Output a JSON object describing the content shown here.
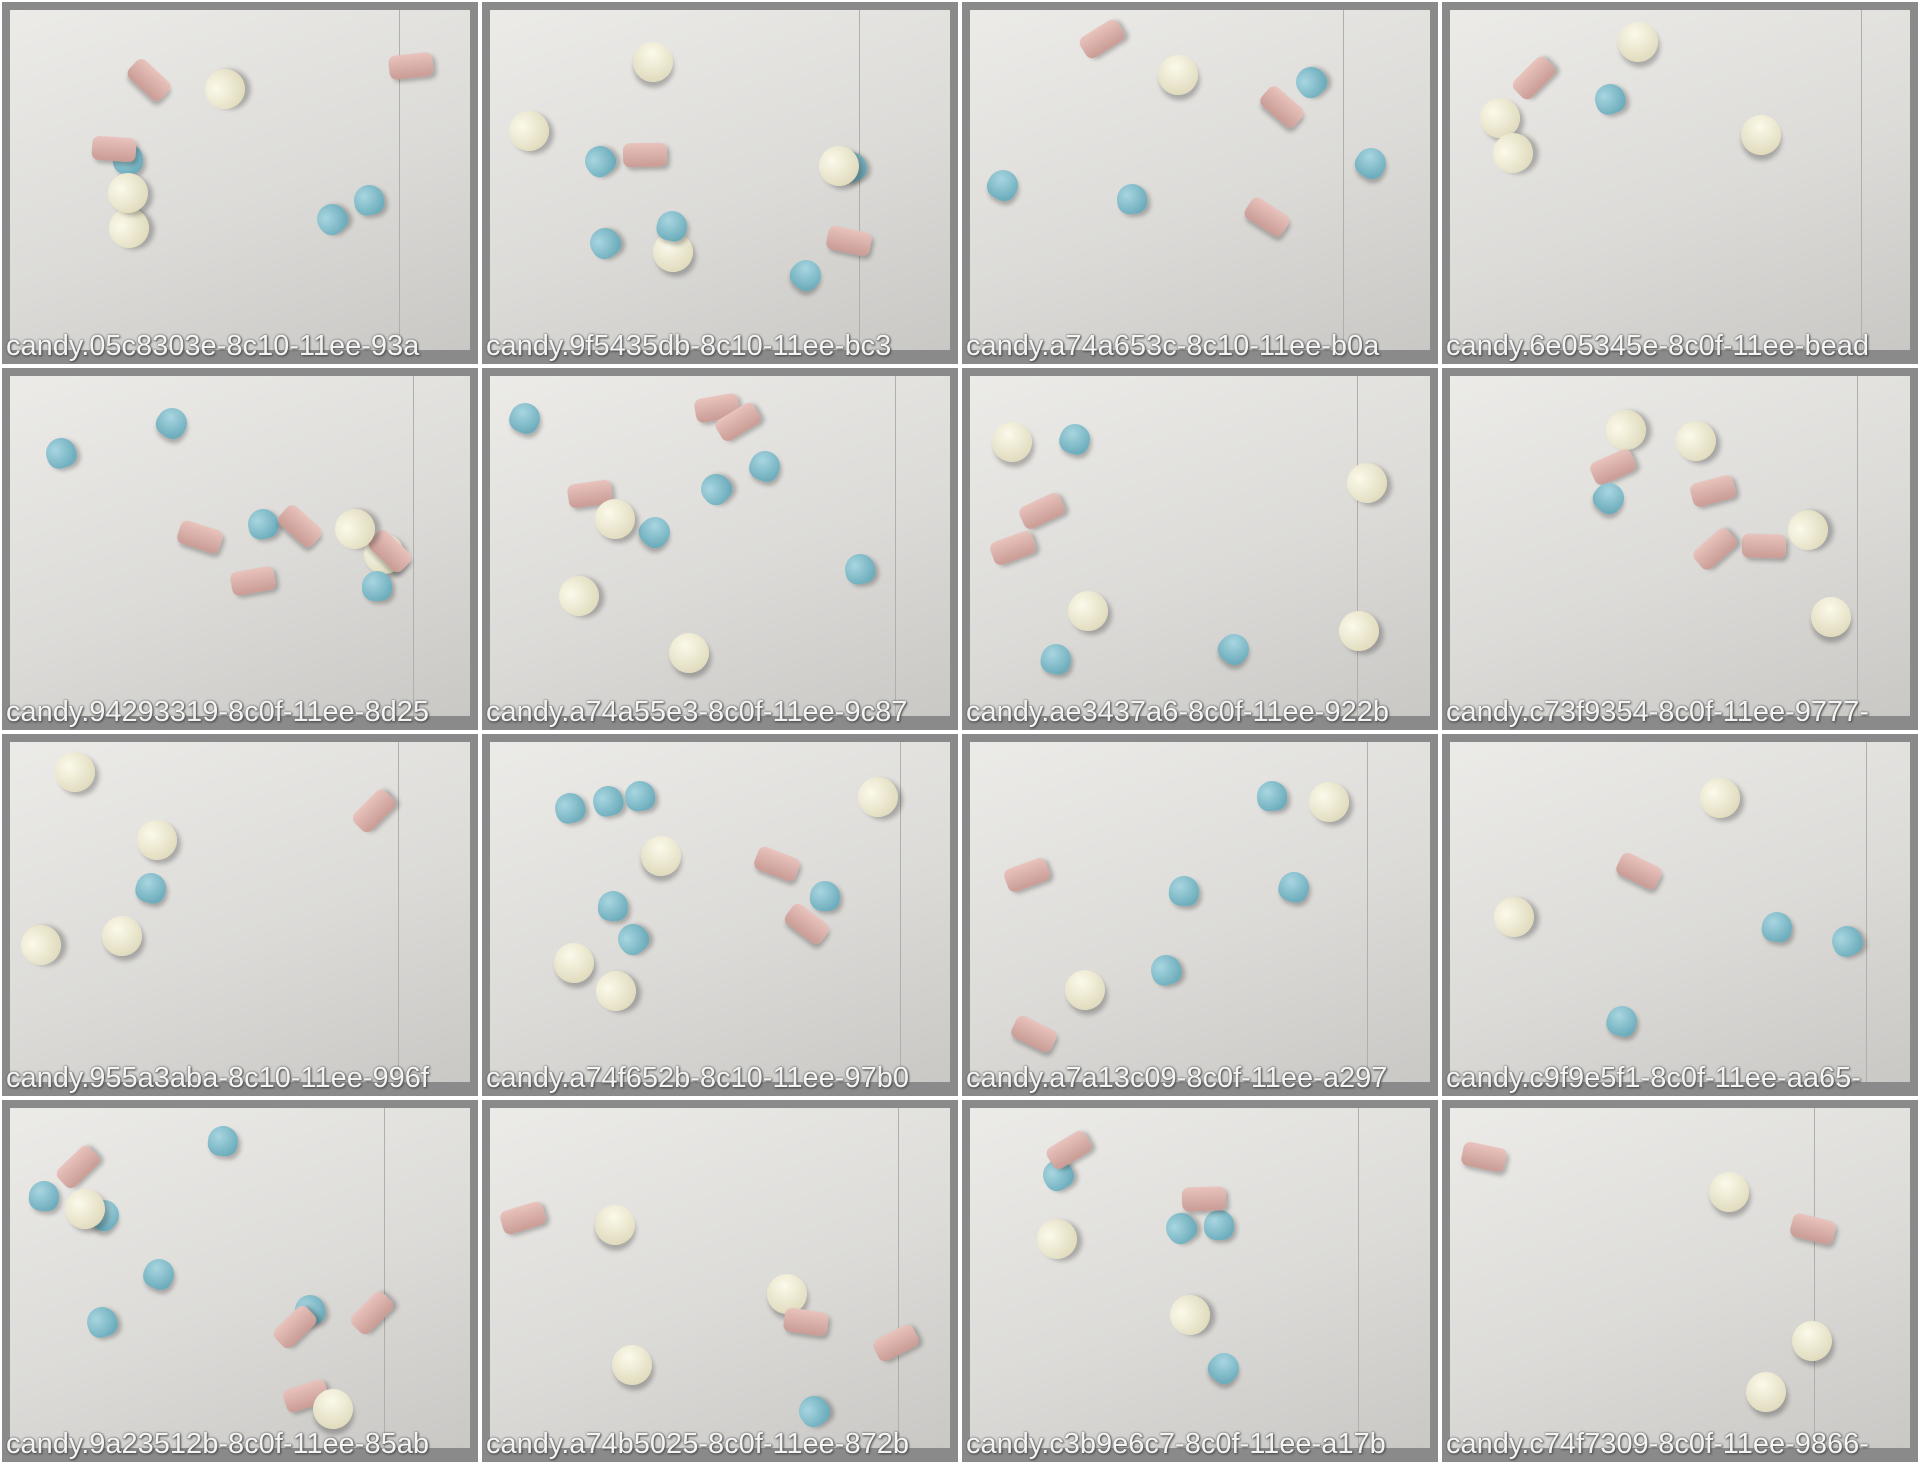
{
  "cells": [
    {
      "label": "candy.05c8303e-8c10-11ee-93a"
    },
    {
      "label": "candy.9f5435db-8c10-11ee-bc3"
    },
    {
      "label": "candy.a74a653c-8c10-11ee-b0a"
    },
    {
      "label": "candy.6e05345e-8c0f-11ee-bead"
    },
    {
      "label": "candy.94293319-8c0f-11ee-8d25"
    },
    {
      "label": "candy.a74a55e3-8c0f-11ee-9c87"
    },
    {
      "label": "candy.ae3437a6-8c0f-11ee-922b"
    },
    {
      "label": "candy.c73f9354-8c0f-11ee-9777-"
    },
    {
      "label": "candy.955a3aba-8c10-11ee-996f"
    },
    {
      "label": "candy.a74f652b-8c10-11ee-97b0"
    },
    {
      "label": "candy.a7a13c09-8c0f-11ee-a297"
    },
    {
      "label": "candy.c9f9e5f1-8c0f-11ee-aa65-"
    },
    {
      "label": "candy.9a23512b-8c0f-11ee-85ab"
    },
    {
      "label": "candy.a74b5025-8c0f-11ee-872b"
    },
    {
      "label": "candy.c3b9e6c7-8c0f-11ee-a17b"
    },
    {
      "label": "candy.c74f7309-8c0f-11ee-9866-"
    }
  ]
}
